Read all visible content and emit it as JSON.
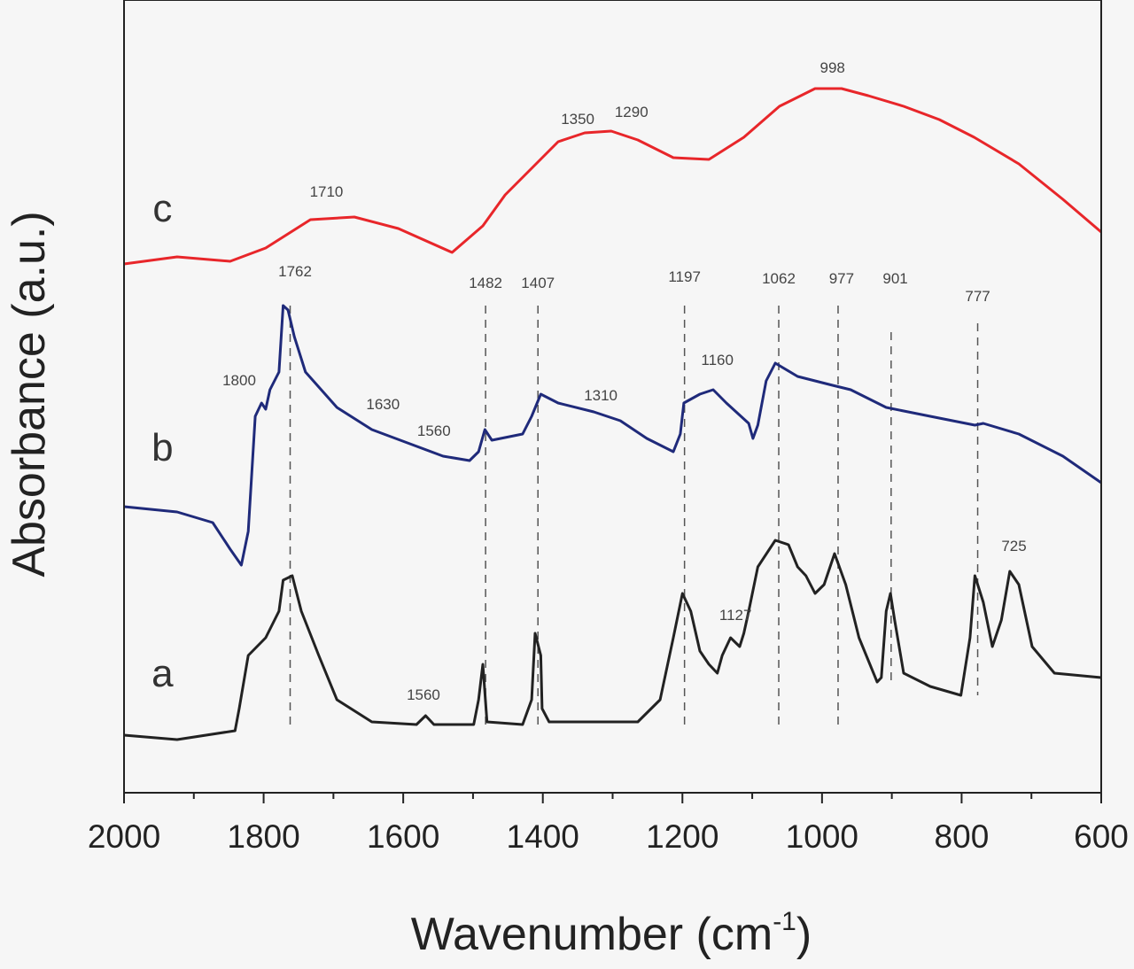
{
  "chart_data": {
    "type": "line",
    "title": "",
    "xlabel": "Wavenumber (cm",
    "xlabel_sup": "-1",
    "xlabel_end": ")",
    "ylabel": "Absorbance (a.u.)",
    "xlim": [
      2000,
      600
    ],
    "ylim": [
      0,
      8.95
    ],
    "x_reversed": true,
    "xticks": [
      2000,
      1800,
      1600,
      1400,
      1200,
      1000,
      800,
      600
    ],
    "grid": false,
    "series": [
      {
        "name": "a",
        "color": "#222222",
        "label_pos": [
          1945,
          1.2
        ],
        "points": [
          [
            2000,
            0.65
          ],
          [
            1924,
            0.6
          ],
          [
            1841,
            0.7
          ],
          [
            1835,
            0.95
          ],
          [
            1822,
            1.55
          ],
          [
            1797,
            1.75
          ],
          [
            1778,
            2.05
          ],
          [
            1772,
            2.4
          ],
          [
            1759,
            2.45
          ],
          [
            1746,
            2.05
          ],
          [
            1721,
            1.55
          ],
          [
            1695,
            1.05
          ],
          [
            1645,
            0.8
          ],
          [
            1581,
            0.77
          ],
          [
            1568,
            0.87
          ],
          [
            1556,
            0.77
          ],
          [
            1499,
            0.77
          ],
          [
            1492,
            1.05
          ],
          [
            1486,
            1.45
          ],
          [
            1480,
            0.8
          ],
          [
            1429,
            0.77
          ],
          [
            1416,
            1.05
          ],
          [
            1411,
            1.8
          ],
          [
            1403,
            1.55
          ],
          [
            1401,
            0.95
          ],
          [
            1391,
            0.8
          ],
          [
            1264,
            0.8
          ],
          [
            1232,
            1.05
          ],
          [
            1213,
            1.75
          ],
          [
            1200,
            2.25
          ],
          [
            1188,
            2.05
          ],
          [
            1175,
            1.6
          ],
          [
            1162,
            1.45
          ],
          [
            1150,
            1.35
          ],
          [
            1143,
            1.55
          ],
          [
            1131,
            1.75
          ],
          [
            1118,
            1.65
          ],
          [
            1112,
            1.8
          ],
          [
            1105,
            2.05
          ],
          [
            1092,
            2.55
          ],
          [
            1067,
            2.85
          ],
          [
            1048,
            2.8
          ],
          [
            1035,
            2.55
          ],
          [
            1023,
            2.45
          ],
          [
            1010,
            2.25
          ],
          [
            997,
            2.35
          ],
          [
            982,
            2.7
          ],
          [
            966,
            2.35
          ],
          [
            947,
            1.75
          ],
          [
            921,
            1.25
          ],
          [
            915,
            1.3
          ],
          [
            908,
            2.05
          ],
          [
            902,
            2.25
          ],
          [
            896,
            1.95
          ],
          [
            883,
            1.35
          ],
          [
            845,
            1.2
          ],
          [
            801,
            1.1
          ],
          [
            788,
            1.75
          ],
          [
            781,
            2.45
          ],
          [
            769,
            2.15
          ],
          [
            756,
            1.65
          ],
          [
            743,
            1.95
          ],
          [
            731,
            2.5
          ],
          [
            718,
            2.35
          ],
          [
            699,
            1.65
          ],
          [
            667,
            1.35
          ],
          [
            600,
            1.3
          ]
        ]
      },
      {
        "name": "b",
        "color": "#1f2a7a",
        "label_pos": [
          1945,
          3.75
        ],
        "points": [
          [
            2000,
            3.23
          ],
          [
            1924,
            3.17
          ],
          [
            1873,
            3.05
          ],
          [
            1848,
            2.75
          ],
          [
            1832,
            2.57
          ],
          [
            1822,
            2.95
          ],
          [
            1812,
            4.25
          ],
          [
            1803,
            4.4
          ],
          [
            1797,
            4.33
          ],
          [
            1791,
            4.55
          ],
          [
            1778,
            4.75
          ],
          [
            1772,
            5.5
          ],
          [
            1765,
            5.45
          ],
          [
            1756,
            5.15
          ],
          [
            1740,
            4.75
          ],
          [
            1695,
            4.35
          ],
          [
            1645,
            4.1
          ],
          [
            1594,
            3.95
          ],
          [
            1543,
            3.8
          ],
          [
            1505,
            3.75
          ],
          [
            1492,
            3.85
          ],
          [
            1483,
            4.1
          ],
          [
            1473,
            3.98
          ],
          [
            1429,
            4.05
          ],
          [
            1416,
            4.25
          ],
          [
            1403,
            4.5
          ],
          [
            1378,
            4.4
          ],
          [
            1327,
            4.3
          ],
          [
            1289,
            4.2
          ],
          [
            1251,
            4.0
          ],
          [
            1213,
            3.85
          ],
          [
            1203,
            4.05
          ],
          [
            1198,
            4.4
          ],
          [
            1175,
            4.5
          ],
          [
            1156,
            4.55
          ],
          [
            1137,
            4.4
          ],
          [
            1105,
            4.17
          ],
          [
            1099,
            4.0
          ],
          [
            1092,
            4.15
          ],
          [
            1080,
            4.65
          ],
          [
            1067,
            4.85
          ],
          [
            1035,
            4.7
          ],
          [
            985,
            4.6
          ],
          [
            959,
            4.55
          ],
          [
            908,
            4.35
          ],
          [
            845,
            4.25
          ],
          [
            781,
            4.15
          ],
          [
            769,
            4.17
          ],
          [
            718,
            4.05
          ],
          [
            655,
            3.8
          ],
          [
            600,
            3.5
          ]
        ]
      },
      {
        "name": "c",
        "color": "#e8262a",
        "label_pos": [
          1945,
          6.45
        ],
        "points": [
          [
            2000,
            5.97
          ],
          [
            1924,
            6.05
          ],
          [
            1848,
            6.0
          ],
          [
            1797,
            6.15
          ],
          [
            1733,
            6.47
          ],
          [
            1670,
            6.5
          ],
          [
            1607,
            6.37
          ],
          [
            1530,
            6.1
          ],
          [
            1486,
            6.4
          ],
          [
            1454,
            6.75
          ],
          [
            1416,
            7.05
          ],
          [
            1378,
            7.35
          ],
          [
            1340,
            7.45
          ],
          [
            1302,
            7.47
          ],
          [
            1264,
            7.37
          ],
          [
            1213,
            7.17
          ],
          [
            1162,
            7.15
          ],
          [
            1112,
            7.4
          ],
          [
            1061,
            7.75
          ],
          [
            1010,
            7.95
          ],
          [
            972,
            7.95
          ],
          [
            934,
            7.87
          ],
          [
            883,
            7.75
          ],
          [
            832,
            7.6
          ],
          [
            782,
            7.4
          ],
          [
            718,
            7.1
          ],
          [
            655,
            6.7
          ],
          [
            600,
            6.33
          ]
        ]
      }
    ],
    "annotations": [
      {
        "text": "1710",
        "x": 1710,
        "y": 6.73
      },
      {
        "text": "1350",
        "x": 1350,
        "y": 7.55
      },
      {
        "text": "1290",
        "x": 1273,
        "y": 7.63
      },
      {
        "text": "998",
        "x": 985,
        "y": 8.13
      },
      {
        "text": "1762",
        "x": 1755,
        "y": 5.83
      },
      {
        "text": "1482",
        "x": 1482,
        "y": 5.7
      },
      {
        "text": "1407",
        "x": 1407,
        "y": 5.7
      },
      {
        "text": "1197",
        "x": 1197,
        "y": 5.77
      },
      {
        "text": "1062",
        "x": 1062,
        "y": 5.75
      },
      {
        "text": "977",
        "x": 972,
        "y": 5.75
      },
      {
        "text": "901",
        "x": 895,
        "y": 5.75
      },
      {
        "text": "777",
        "x": 777,
        "y": 5.55
      },
      {
        "text": "1800",
        "x": 1835,
        "y": 4.6
      },
      {
        "text": "1630",
        "x": 1629,
        "y": 4.33
      },
      {
        "text": "1560",
        "x": 1556,
        "y": 4.03
      },
      {
        "text": "1310",
        "x": 1317,
        "y": 4.43
      },
      {
        "text": "1160",
        "x": 1150,
        "y": 4.83
      },
      {
        "text": "1560",
        "x": 1571,
        "y": 1.05
      },
      {
        "text": "1127",
        "x": 1124,
        "y": 1.95
      },
      {
        "text": "725",
        "x": 725,
        "y": 2.73
      }
    ],
    "guide_lines": [
      {
        "x": 1762,
        "y_top": 5.5,
        "y_bottom": 0.75
      },
      {
        "x": 1482,
        "y_top": 5.5,
        "y_bottom": 0.75
      },
      {
        "x": 1407,
        "y_top": 5.5,
        "y_bottom": 0.75
      },
      {
        "x": 1197,
        "y_top": 5.5,
        "y_bottom": 0.75
      },
      {
        "x": 1062,
        "y_top": 5.5,
        "y_bottom": 0.75
      },
      {
        "x": 977,
        "y_top": 5.5,
        "y_bottom": 0.75
      },
      {
        "x": 901,
        "y_top": 5.2,
        "y_bottom": 1.2
      },
      {
        "x": 777,
        "y_top": 5.3,
        "y_bottom": 1.1
      }
    ]
  }
}
